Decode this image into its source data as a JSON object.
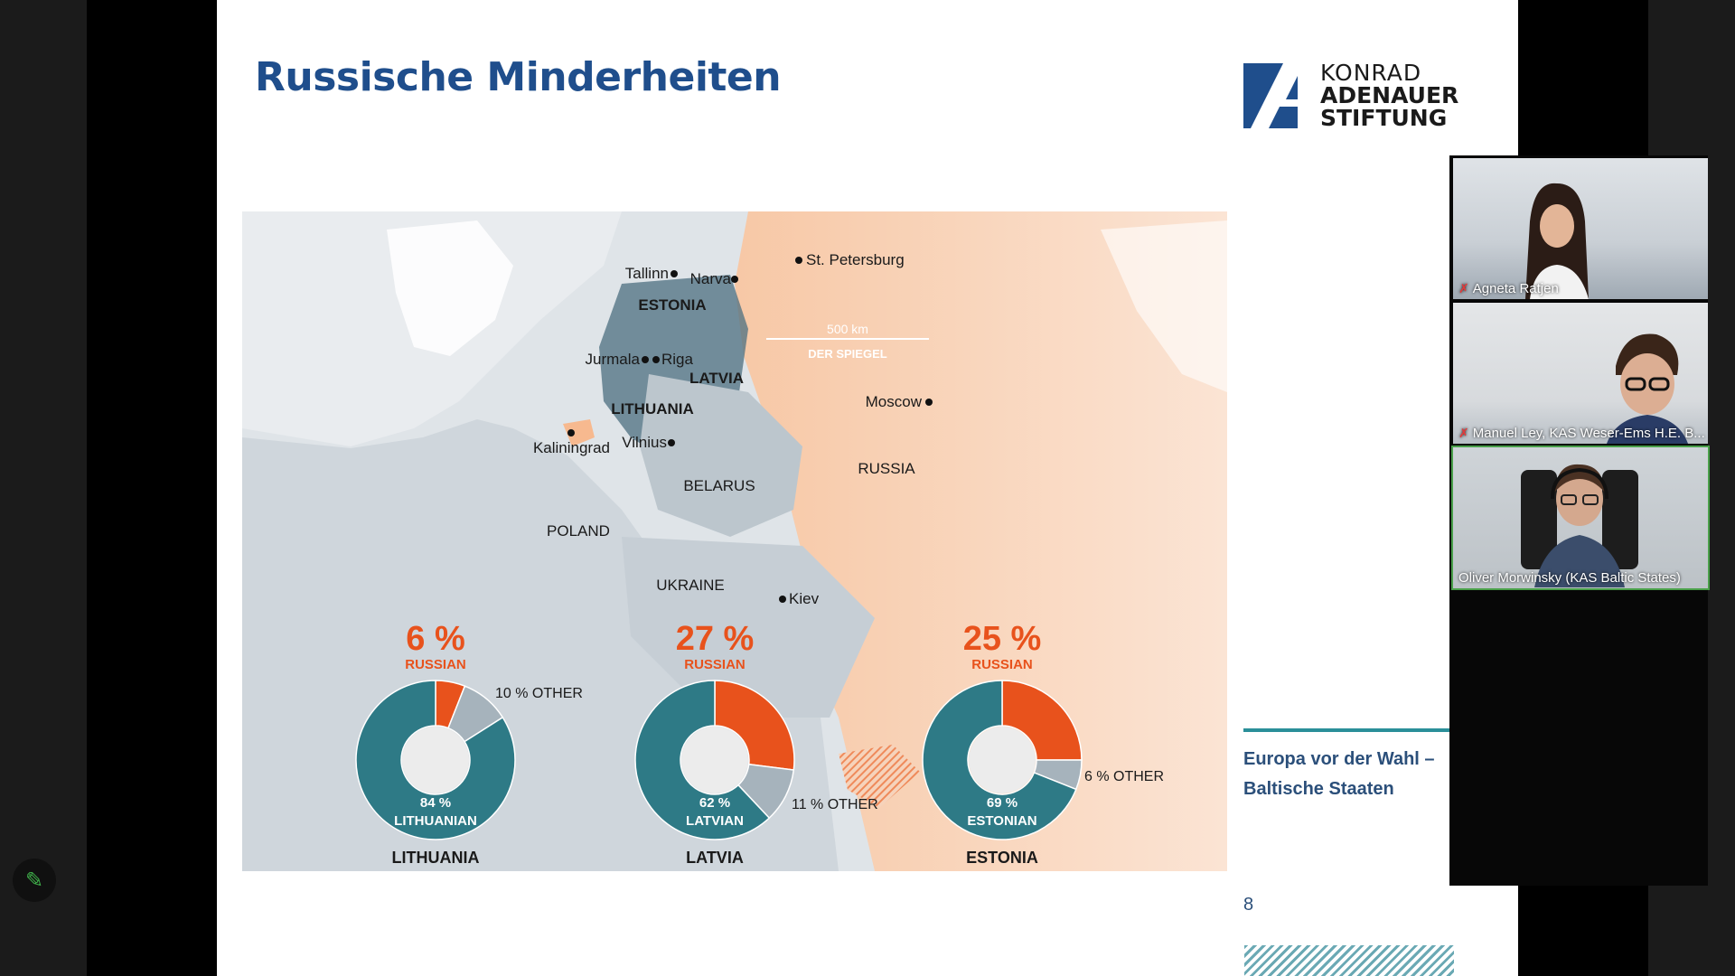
{
  "slide": {
    "title": "Russische Minderheiten",
    "logo": {
      "line1": "KONRAD",
      "line2": "ADENAUER",
      "line3": "STIFTUNG"
    },
    "side_title": "Europa vor der Wahl – Baltische Staaten",
    "page_number": "8"
  },
  "map": {
    "cities": [
      "St. Petersburg",
      "Tallinn",
      "Narva",
      "Jurmala",
      "Riga",
      "Moscow",
      "Kaliningrad",
      "Vilnius",
      "Kiev"
    ],
    "countries": [
      "ESTONIA",
      "LATVIA",
      "LITHUANIA",
      "RUSSIA",
      "BELARUS",
      "POLAND",
      "UKRAINE"
    ],
    "scale_label": "500 km",
    "source": "DER SPIEGEL"
  },
  "chart_data": [
    {
      "type": "pie",
      "title": "LITHUANIA",
      "headline": "6 %",
      "headline_label": "RUSSIAN",
      "slices": [
        {
          "label": "RUSSIAN",
          "value": 6,
          "color": "#e8521c"
        },
        {
          "label": "OTHER",
          "value": 10,
          "color": "#a6b3bc",
          "text": "10 % OTHER"
        },
        {
          "label": "LITHUANIAN",
          "value": 84,
          "color": "#2e7a86",
          "text1": "84 %",
          "text2": "LITHUANIAN"
        }
      ]
    },
    {
      "type": "pie",
      "title": "LATVIA",
      "headline": "27 %",
      "headline_label": "RUSSIAN",
      "slices": [
        {
          "label": "RUSSIAN",
          "value": 27,
          "color": "#e8521c"
        },
        {
          "label": "OTHER",
          "value": 11,
          "color": "#a6b3bc",
          "text": "11 % OTHER"
        },
        {
          "label": "LATVIAN",
          "value": 62,
          "color": "#2e7a86",
          "text1": "62 %",
          "text2": "LATVIAN"
        }
      ]
    },
    {
      "type": "pie",
      "title": "ESTONIA",
      "headline": "25 %",
      "headline_label": "RUSSIAN",
      "slices": [
        {
          "label": "RUSSIAN",
          "value": 25,
          "color": "#e8521c"
        },
        {
          "label": "OTHER",
          "value": 6,
          "color": "#a6b3bc",
          "text": "6 % OTHER"
        },
        {
          "label": "ESTONIAN",
          "value": 69,
          "color": "#2e7a86",
          "text1": "69 %",
          "text2": "ESTONIAN"
        }
      ]
    }
  ],
  "participants": [
    {
      "name": "Agneta Ratjen",
      "muted": true
    },
    {
      "name": "Manuel Ley, KAS Weser-Ems H.E. B...",
      "muted": true
    },
    {
      "name": "Oliver Morwinsky (KAS Baltic States)",
      "muted": false,
      "speaking": true
    }
  ],
  "toolbar": {
    "annotate_icon": "pencil-icon"
  }
}
